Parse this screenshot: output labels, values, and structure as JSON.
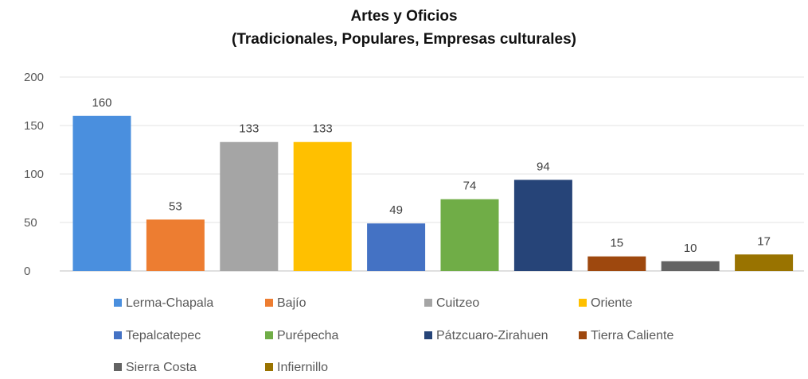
{
  "chart_data": {
    "type": "bar",
    "title": "Artes y Oficios",
    "subtitle": "(Tradicionales, Populares, Empresas culturales)",
    "categories": [
      "Lerma-Chapala",
      "Bajío",
      "Cuitzeo",
      "Oriente",
      "Tepalcatepec",
      "Purépecha",
      "Pátzcuaro-Zirahuen",
      "Tierra Caliente",
      "Sierra Costa",
      "Infiernillo"
    ],
    "values": [
      160,
      53,
      133,
      133,
      49,
      74,
      94,
      15,
      10,
      17
    ],
    "colors": [
      "#4a8fde",
      "#ed7d31",
      "#a5a5a5",
      "#ffc000",
      "#4472c4",
      "#70ad47",
      "#264478",
      "#9e480e",
      "#636363",
      "#997300"
    ],
    "ylim": [
      0,
      200
    ],
    "yticks": [
      0,
      50,
      100,
      150,
      200
    ],
    "ytick_labels": [
      "0",
      "50",
      "100",
      "150",
      "200"
    ],
    "grid": true,
    "legend_position": "bottom",
    "xlabel": "",
    "ylabel": ""
  }
}
